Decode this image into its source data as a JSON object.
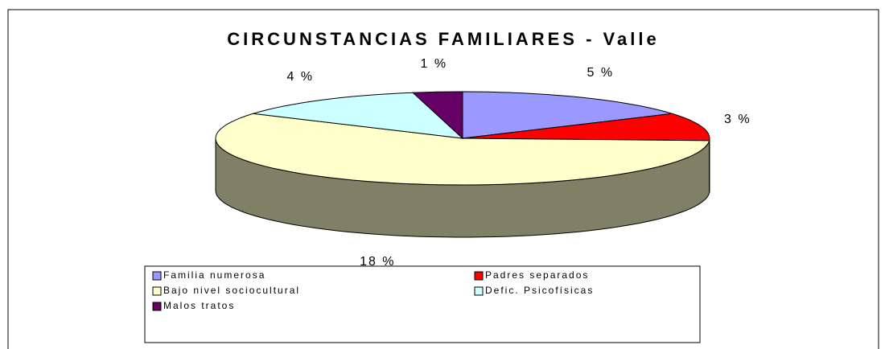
{
  "chart_data": {
    "type": "pie3d",
    "title": "CIRCUNSTANCIAS FAMILIARES - Valle",
    "categories": [
      "Familia numerosa",
      "Padres separados",
      "Bajo nivel sociocultural",
      "Defic. Psicofísicas",
      "Malos tratos"
    ],
    "values": [
      5,
      3,
      18,
      4,
      1
    ],
    "value_labels": [
      "5 %",
      "3 %",
      "18 %",
      "4 %",
      "1 %"
    ],
    "colors": [
      "#9999FF",
      "#FF0000",
      "#FFFFCC",
      "#CCFFFF",
      "#660066"
    ],
    "legend": "bottom"
  }
}
